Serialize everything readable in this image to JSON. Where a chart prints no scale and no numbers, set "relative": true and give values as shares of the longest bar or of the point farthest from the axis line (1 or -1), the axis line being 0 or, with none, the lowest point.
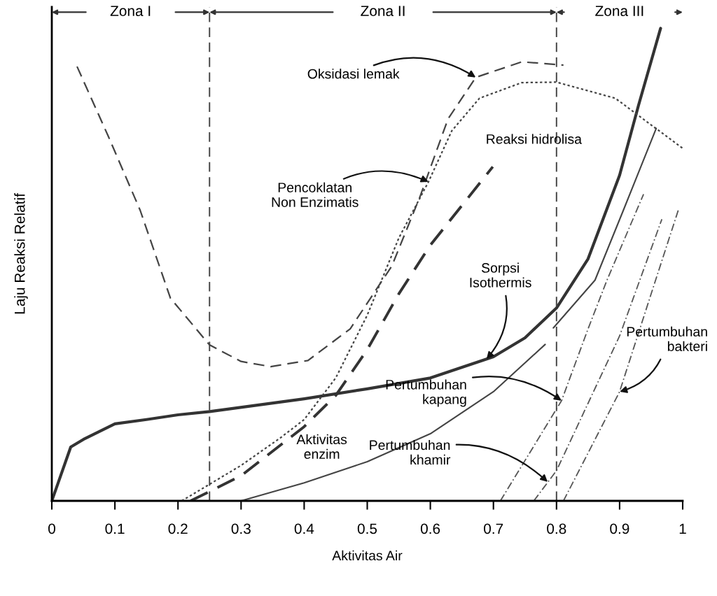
{
  "chart_data": {
    "type": "line",
    "relative": true,
    "xlabel": "Aktivitas Air",
    "ylabel": "Laju Reaksi Relatif",
    "xlim": [
      0,
      1
    ],
    "xticks": [
      0,
      0.1,
      0.2,
      0.3,
      0.4,
      0.5,
      0.6,
      0.7,
      0.8,
      0.9,
      1
    ],
    "series": [
      {
        "color": "#333333",
        "line_style": "solid",
        "x": [
          0,
          0.01,
          0.03,
          0.05,
          0.1,
          0.15,
          0.2,
          0.25,
          0.4,
          0.5,
          0.6,
          0.7,
          0.75,
          0.8,
          0.85,
          0.9,
          0.93,
          0.965
        ],
        "values": [
          0,
          0.038,
          0.114,
          0.13,
          0.163,
          0.172,
          0.182,
          0.189,
          0.216,
          0.237,
          0.26,
          0.305,
          0.345,
          0.408,
          0.512,
          0.689,
          0.837,
          1.0
        ]
      },
      {
        "color": "#444444",
        "line_style": "dashed",
        "x": [
          0.04,
          0.09,
          0.14,
          0.188,
          0.25,
          0.3,
          0.347,
          0.406,
          0.473,
          0.539,
          0.584,
          0.628,
          0.672,
          0.745,
          0.811
        ],
        "values": [
          0.919,
          0.77,
          0.615,
          0.429,
          0.33,
          0.295,
          0.284,
          0.297,
          0.364,
          0.497,
          0.645,
          0.808,
          0.896,
          0.929,
          0.922
        ]
      },
      {
        "color": "#444444",
        "line_style": "dotted",
        "x": [
          0.206,
          0.3,
          0.362,
          0.4,
          0.45,
          0.5,
          0.55,
          0.597,
          0.634,
          0.678,
          0.745,
          0.8,
          0.893,
          1.0
        ],
        "values": [
          0,
          0.075,
          0.133,
          0.172,
          0.26,
          0.393,
          0.556,
          0.675,
          0.783,
          0.852,
          0.885,
          0.886,
          0.852,
          0.746
        ]
      },
      {
        "color": "#333333",
        "line_style": "dashed",
        "x": [
          0.22,
          0.3,
          0.4,
          0.45,
          0.5,
          0.55,
          0.6,
          0.699
        ],
        "values": [
          0,
          0.053,
          0.157,
          0.223,
          0.32,
          0.438,
          0.541,
          0.707
        ]
      },
      {
        "color": "#444444",
        "line_style": "solid",
        "x": [
          0.3,
          0.4,
          0.5,
          0.6,
          0.7,
          0.782,
          0.79,
          0.795,
          0.861,
          0.906,
          0.958
        ],
        "values": [
          0,
          0.038,
          0.083,
          0.142,
          0.231,
          0.331,
          null,
          0.366,
          0.467,
          0.615,
          0.788
        ]
      },
      {
        "color": "#555555",
        "line_style": "dashdot",
        "x": [
          0.711,
          0.808,
          0.85,
          0.88,
          0.938
        ],
        "values": [
          0,
          0.212,
          0.364,
          0.467,
          0.649
        ]
      },
      {
        "color": "#555555",
        "line_style": "dashdot",
        "x": [
          0.764,
          0.8,
          0.9,
          0.967
        ],
        "values": [
          0,
          0.064,
          0.349,
          0.596
        ]
      },
      {
        "color": "#555555",
        "line_style": "dashdot",
        "x": [
          0.811,
          0.9,
          0.95,
          0.993
        ],
        "values": [
          0,
          0.231,
          0.438,
          0.615
        ]
      }
    ],
    "ref_lines": [
      {
        "axis": "x",
        "value": 0.25,
        "line_style": "dashed",
        "color": "#444444"
      },
      {
        "axis": "x",
        "value": 0.8,
        "line_style": "dashed",
        "color": "#444444"
      }
    ],
    "annotations": [
      "Zona I",
      "Zona II",
      "Zona III",
      {
        "text": "Sorpsi\nIsothermis",
        "x": 0.689,
        "y": 0.3
      },
      {
        "text": "Oksidasi lemak",
        "x": 0.672,
        "y": 0.896
      },
      {
        "text": "Pencoklatan\nNon Enzimatis",
        "x": 0.597,
        "y": 0.675
      },
      "Reaksi hidrolisa",
      "Aktivitas\nenzim",
      {
        "text": "Pertumbuhan\nkapang",
        "x": 0.808,
        "y": 0.212
      },
      {
        "text": "Pertumbuhan\nkhamir",
        "x": 0.786,
        "y": 0.04
      },
      {
        "text": "Pertumbuhan\nbakteri",
        "x": 0.9,
        "y": 0.231
      }
    ]
  }
}
